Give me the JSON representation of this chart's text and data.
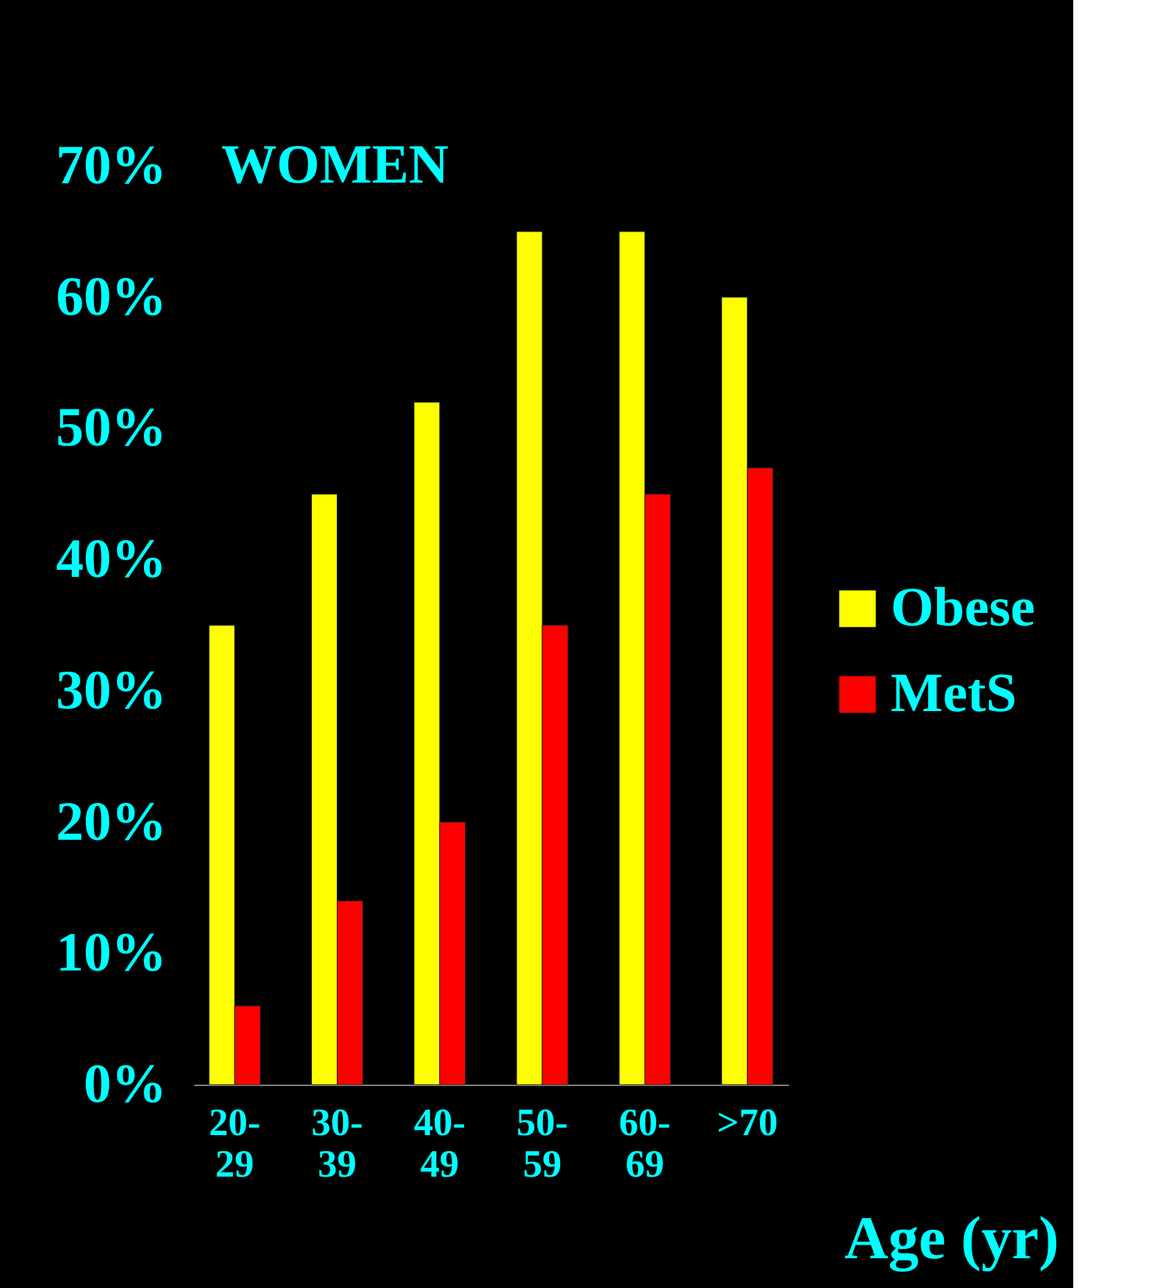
{
  "chart_data": {
    "type": "bar",
    "title": "WOMEN",
    "xlabel": "Age (yr)",
    "categories": [
      "20-29",
      "30-39",
      "40-49",
      "50-59",
      "60-69",
      ">70"
    ],
    "series": [
      {
        "name": "Obese",
        "color": "#ffff00",
        "values": [
          35,
          45,
          52,
          65,
          65,
          60
        ]
      },
      {
        "name": "MetS",
        "color": "#ff0000",
        "values": [
          6,
          14,
          20,
          35,
          45,
          47
        ]
      }
    ],
    "ylim": [
      0,
      70
    ],
    "yticks": [
      {
        "value": 0,
        "label": "0%"
      },
      {
        "value": 10,
        "label": "10%"
      },
      {
        "value": 20,
        "label": "20%"
      },
      {
        "value": 30,
        "label": "30%"
      },
      {
        "value": 40,
        "label": "40%"
      },
      {
        "value": 50,
        "label": "50%"
      },
      {
        "value": 60,
        "label": "60%"
      },
      {
        "value": 70,
        "label": "70%"
      }
    ],
    "grid": false,
    "legend": "right"
  }
}
